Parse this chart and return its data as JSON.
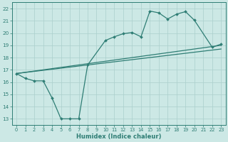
{
  "xlabel": "Humidex (Indice chaleur)",
  "bg_color": "#cce8e5",
  "line_color": "#2e7d74",
  "grid_color": "#aacfcc",
  "xlim": [
    -0.5,
    23.5
  ],
  "ylim": [
    12.5,
    22.5
  ],
  "xticks": [
    0,
    1,
    2,
    3,
    4,
    5,
    6,
    7,
    8,
    9,
    10,
    11,
    12,
    13,
    14,
    15,
    16,
    17,
    18,
    19,
    20,
    21,
    22,
    23
  ],
  "yticks": [
    13,
    14,
    15,
    16,
    17,
    18,
    19,
    20,
    21,
    22
  ],
  "line1_x": [
    0,
    23
  ],
  "line1_y": [
    16.7,
    19.0
  ],
  "line2_x": [
    0,
    23
  ],
  "line2_y": [
    16.7,
    18.7
  ],
  "line3_x": [
    0,
    1,
    2,
    3,
    4,
    5,
    6,
    7,
    8,
    10,
    11,
    12,
    13,
    14,
    15,
    16,
    17,
    18,
    19,
    20,
    22,
    23
  ],
  "line3_y": [
    16.7,
    16.3,
    16.1,
    16.1,
    14.7,
    13.0,
    13.0,
    13.0,
    17.4,
    19.4,
    19.7,
    19.95,
    20.05,
    19.7,
    21.8,
    21.65,
    21.15,
    21.55,
    21.75,
    21.05,
    18.85,
    19.1
  ]
}
